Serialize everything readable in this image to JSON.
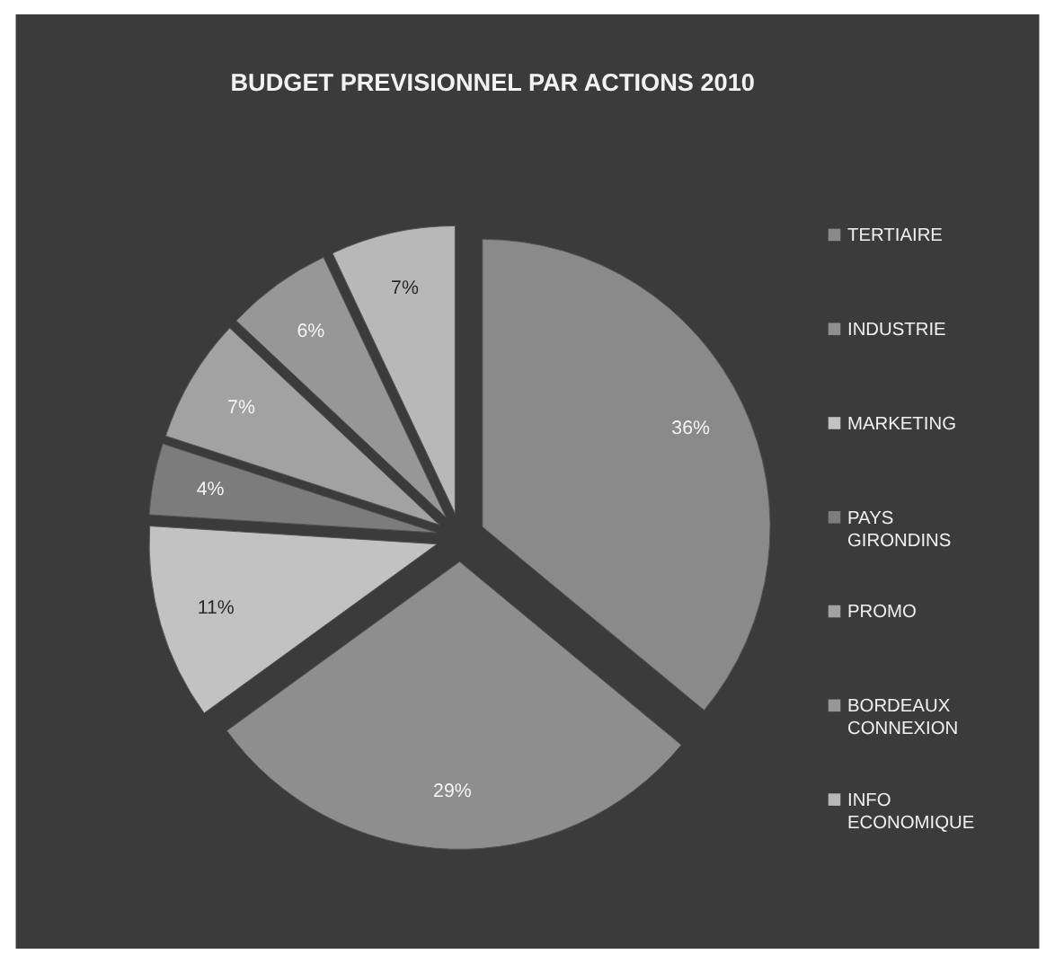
{
  "chart_data": {
    "type": "pie",
    "title": "BUDGET PREVISIONNEL PAR ACTIONS 2010",
    "categories": [
      "TERTIAIRE",
      "INDUSTRIE",
      "MARKETING",
      "PAYS GIRONDINS",
      "PROMO",
      "BORDEAUX CONNEXION",
      "INFO ECONOMIQUE"
    ],
    "values": [
      36,
      29,
      11,
      4,
      7,
      6,
      7
    ],
    "value_labels": [
      "36%",
      "29%",
      "11%",
      "4%",
      "7%",
      "6%",
      "7%"
    ],
    "colors": [
      "#8a8a8a",
      "#8e8e8e",
      "#c2c2c2",
      "#7c7c7c",
      "#a2a2a2",
      "#979797",
      "#b8b8b8"
    ],
    "legend": "right"
  }
}
